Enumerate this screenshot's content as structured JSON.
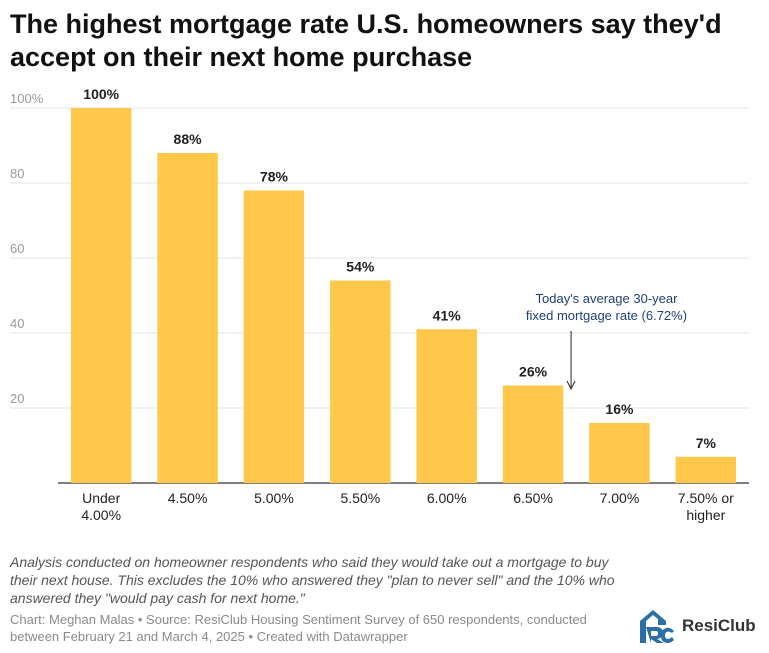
{
  "title": "The highest mortgage rate U.S. homeowners say they'd accept on their next home purchase",
  "chart_data": {
    "type": "bar",
    "categories": [
      [
        "Under",
        "4.00%"
      ],
      [
        "4.50%"
      ],
      [
        "5.00%"
      ],
      [
        "5.50%"
      ],
      [
        "6.00%"
      ],
      [
        "6.50%"
      ],
      [
        "7.00%"
      ],
      [
        "7.50% or",
        "higher"
      ]
    ],
    "values": [
      100,
      88,
      78,
      54,
      41,
      26,
      16,
      7
    ],
    "value_labels": [
      "100%",
      "88%",
      "78%",
      "54%",
      "41%",
      "26%",
      "16%",
      "7%"
    ],
    "ylim": [
      0,
      100
    ],
    "y_ticks": [
      20,
      40,
      60,
      80,
      100
    ],
    "y_tick_labels": [
      "20",
      "40",
      "60",
      "80",
      "100%"
    ],
    "grid": true,
    "bar_color": "#ffc84a",
    "annotation": {
      "lines": [
        "Today's average 30-year",
        "fixed mortgage rate (6.72%)"
      ],
      "x_value": 6.72,
      "color": "#1f3f7a"
    }
  },
  "notes": "Analysis conducted on homeowner respondents who said they would take out a mortgage to buy their next house. This excludes the 10% who answered they \"plan to never sell\" and the 10% who answered they \"would pay cash for next home.\"",
  "credit": "Chart: Meghan Malas • Source: ResiClub Housing Sentiment Survey of 650 respondents, conducted between February 21 and March 4, 2025 • Created with Datawrapper",
  "logo": {
    "text": "ResiClub",
    "icon": "resiclub-logo-icon",
    "color": "#2a6fa8"
  }
}
